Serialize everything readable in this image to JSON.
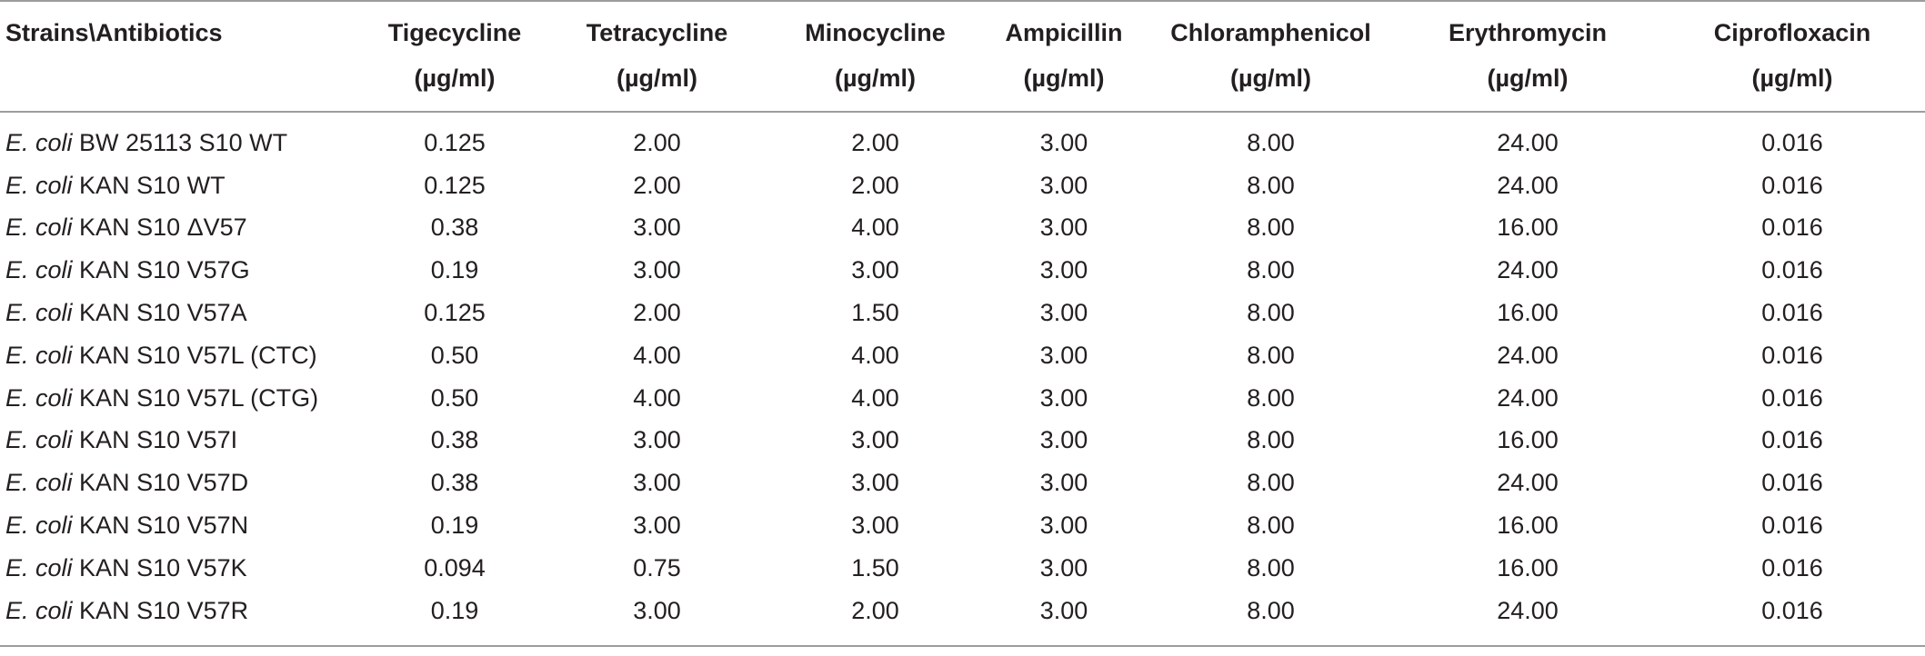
{
  "table": {
    "corner_header": "Strains\\Antibiotics",
    "unit": "(µg/ml)",
    "columns": [
      "Tigecycline",
      "Tetracycline",
      "Minocycline",
      "Ampicillin",
      "Chloramphenicol",
      "Erythromycin",
      "Ciprofloxacin"
    ],
    "rows": [
      {
        "genus": "E. coli",
        "strain": "BW 25113 S10 WT",
        "values": [
          "0.125",
          "2.00",
          "2.00",
          "3.00",
          "8.00",
          "24.00",
          "0.016"
        ]
      },
      {
        "genus": "E. coli",
        "strain": "KAN S10 WT",
        "values": [
          "0.125",
          "2.00",
          "2.00",
          "3.00",
          "8.00",
          "24.00",
          "0.016"
        ]
      },
      {
        "genus": "E. coli",
        "strain": "KAN S10 ΔV57",
        "values": [
          "0.38",
          "3.00",
          "4.00",
          "3.00",
          "8.00",
          "16.00",
          "0.016"
        ]
      },
      {
        "genus": "E. coli",
        "strain": "KAN S10 V57G",
        "values": [
          "0.19",
          "3.00",
          "3.00",
          "3.00",
          "8.00",
          "24.00",
          "0.016"
        ]
      },
      {
        "genus": "E. coli",
        "strain": "KAN S10 V57A",
        "values": [
          "0.125",
          "2.00",
          "1.50",
          "3.00",
          "8.00",
          "16.00",
          "0.016"
        ]
      },
      {
        "genus": "E. coli",
        "strain": "KAN S10 V57L (CTC)",
        "values": [
          "0.50",
          "4.00",
          "4.00",
          "3.00",
          "8.00",
          "24.00",
          "0.016"
        ]
      },
      {
        "genus": "E. coli",
        "strain": "KAN S10 V57L (CTG)",
        "values": [
          "0.50",
          "4.00",
          "4.00",
          "3.00",
          "8.00",
          "24.00",
          "0.016"
        ]
      },
      {
        "genus": "E. coli",
        "strain": "KAN S10 V57I",
        "values": [
          "0.38",
          "3.00",
          "3.00",
          "3.00",
          "8.00",
          "16.00",
          "0.016"
        ]
      },
      {
        "genus": "E. coli",
        "strain": "KAN S10 V57D",
        "values": [
          "0.38",
          "3.00",
          "3.00",
          "3.00",
          "8.00",
          "24.00",
          "0.016"
        ]
      },
      {
        "genus": "E. coli",
        "strain": "KAN S10 V57N",
        "values": [
          "0.19",
          "3.00",
          "3.00",
          "3.00",
          "8.00",
          "16.00",
          "0.016"
        ]
      },
      {
        "genus": "E. coli",
        "strain": "KAN S10 V57K",
        "values": [
          "0.094",
          "0.75",
          "1.50",
          "3.00",
          "8.00",
          "16.00",
          "0.016"
        ]
      },
      {
        "genus": "E. coli",
        "strain": "KAN S10 V57R",
        "values": [
          "0.19",
          "3.00",
          "2.00",
          "3.00",
          "8.00",
          "24.00",
          "0.016"
        ]
      }
    ]
  },
  "colors": {
    "text": "#231f20",
    "rule": "#9d9d9d",
    "background": "#ffffff"
  }
}
